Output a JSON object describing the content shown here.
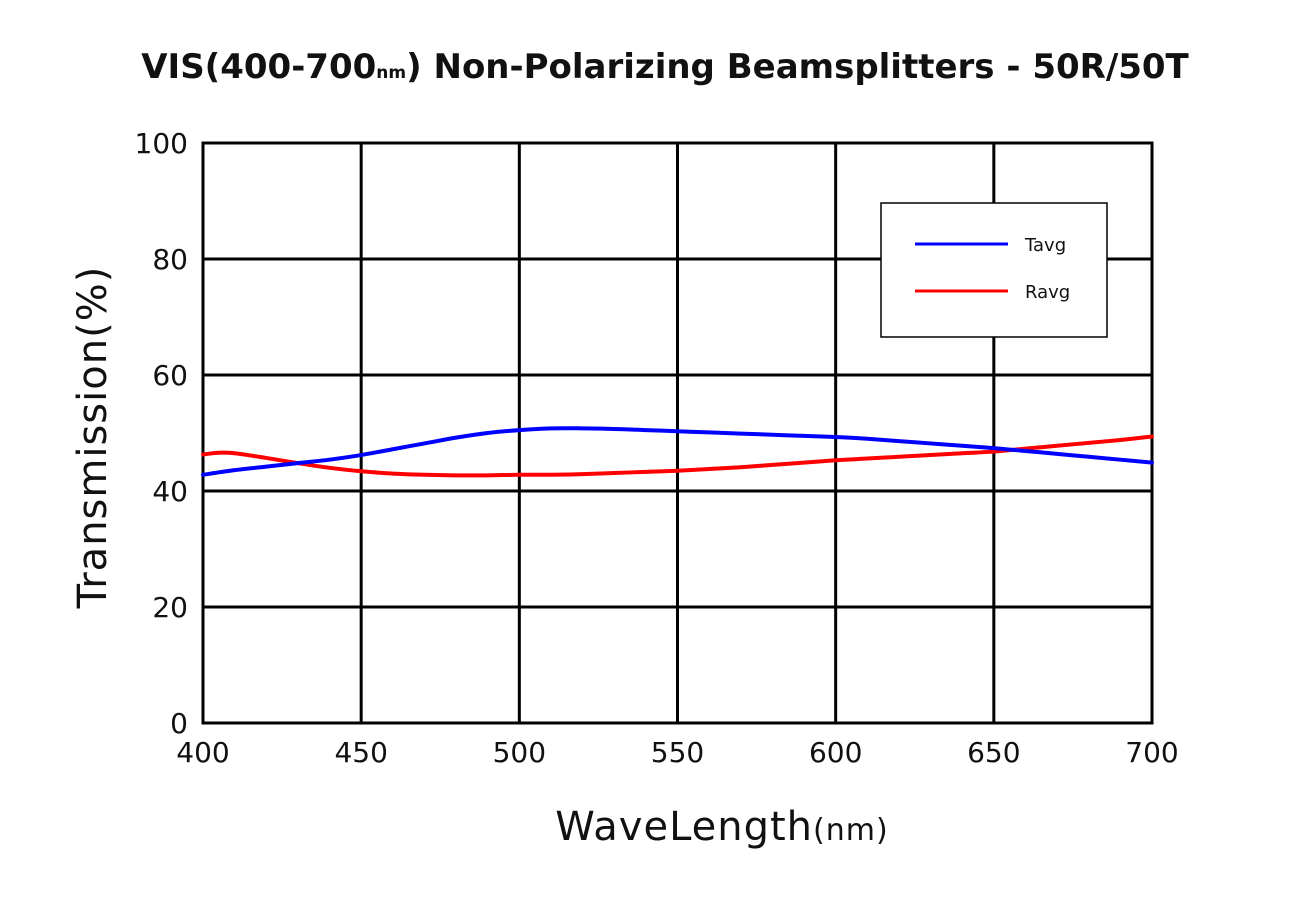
{
  "chart_data": {
    "type": "line",
    "title": {
      "prefix": "VIS(400-700",
      "unit": "nm",
      "suffix": ")  Non-Polarizing Beamsplitters - 50R/50T"
    },
    "xlabel": {
      "main": "WaveLength",
      "unit": "(nm)"
    },
    "ylabel": "Transmission(%)",
    "xlim": [
      400,
      700
    ],
    "ylim": [
      0,
      100
    ],
    "xticks": [
      "400",
      "450",
      "500",
      "550",
      "600",
      "650",
      "700"
    ],
    "yticks": [
      "0",
      "20",
      "40",
      "60",
      "80",
      "100"
    ],
    "grid": true,
    "legend_position": "top-right",
    "series": [
      {
        "name": "Tavg",
        "color": "#0000ff",
        "x": [
          400,
          410,
          420,
          430,
          440,
          450,
          460,
          470,
          480,
          490,
          500,
          510,
          520,
          530,
          540,
          550,
          560,
          570,
          580,
          590,
          600,
          610,
          620,
          630,
          640,
          650,
          660,
          670,
          680,
          690,
          700
        ],
        "y": [
          42.8,
          43.6,
          44.2,
          44.8,
          45.4,
          46.2,
          47.2,
          48.2,
          49.2,
          50.0,
          50.5,
          50.8,
          50.8,
          50.7,
          50.5,
          50.3,
          50.1,
          49.9,
          49.7,
          49.5,
          49.3,
          49.0,
          48.6,
          48.2,
          47.8,
          47.4,
          46.9,
          46.4,
          45.9,
          45.4,
          44.9
        ]
      },
      {
        "name": "Ravg",
        "color": "#ff0000",
        "x": [
          400,
          405,
          410,
          420,
          430,
          440,
          450,
          460,
          470,
          480,
          490,
          500,
          510,
          520,
          530,
          540,
          550,
          560,
          570,
          580,
          590,
          600,
          610,
          620,
          630,
          640,
          650,
          660,
          670,
          680,
          690,
          700
        ],
        "y": [
          46.3,
          46.6,
          46.5,
          45.7,
          44.8,
          44.0,
          43.4,
          43.0,
          42.8,
          42.7,
          42.7,
          42.8,
          42.8,
          42.9,
          43.1,
          43.3,
          43.5,
          43.8,
          44.1,
          44.5,
          44.9,
          45.3,
          45.6,
          45.9,
          46.2,
          46.5,
          46.8,
          47.3,
          47.8,
          48.3,
          48.8,
          49.4
        ]
      }
    ]
  }
}
